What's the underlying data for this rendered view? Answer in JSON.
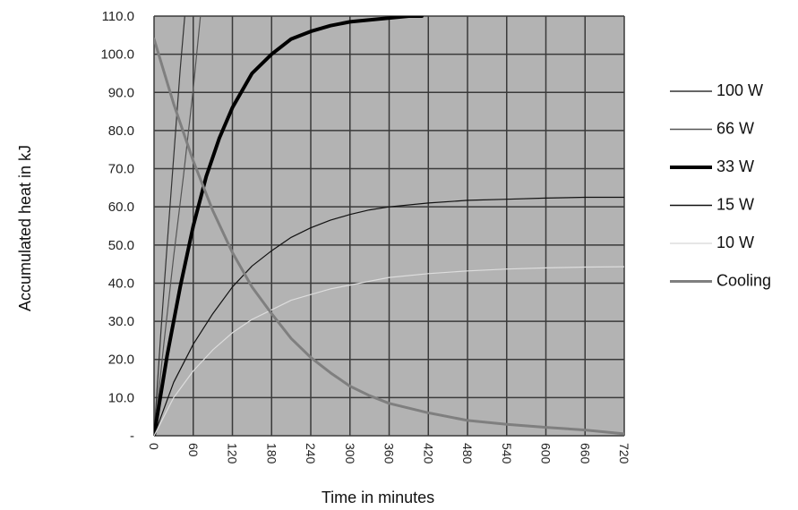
{
  "chart_data": {
    "type": "line",
    "title": "",
    "xlabel": "Time in minutes",
    "ylabel": "Accumulated heat in kJ",
    "xlim": [
      0,
      720
    ],
    "ylim": [
      0,
      110
    ],
    "x_ticks": [
      "0",
      "60",
      "120",
      "180",
      "240",
      "300",
      "360",
      "420",
      "480",
      "540",
      "600",
      "660",
      "720"
    ],
    "y_ticks": [
      "-",
      "10.0",
      "20.0",
      "30.0",
      "40.0",
      "50.0",
      "60.0",
      "70.0",
      "80.0",
      "90.0",
      "100.0",
      "110.0"
    ],
    "grid": true,
    "legend_position": "right",
    "plot_background": "#b3b3b3",
    "series": [
      {
        "name": "100 W",
        "color": "#333333",
        "width": 1.2,
        "x": [
          0,
          10,
          20,
          30,
          40,
          47
        ],
        "y": [
          0,
          26,
          50,
          73,
          96,
          110
        ]
      },
      {
        "name": "66 W",
        "color": "#555555",
        "width": 1.2,
        "x": [
          0,
          15,
          30,
          45,
          60,
          71
        ],
        "y": [
          0,
          24,
          47,
          68,
          91,
          110
        ]
      },
      {
        "name": "33 W",
        "color": "#000000",
        "width": 4,
        "x": [
          0,
          20,
          40,
          60,
          80,
          100,
          120,
          150,
          180,
          210,
          240,
          270,
          300,
          330,
          360,
          390,
          410
        ],
        "y": [
          0,
          21,
          39,
          55,
          68,
          78,
          86,
          95,
          100,
          104,
          106,
          107.5,
          108.5,
          109,
          109.5,
          110,
          110
        ]
      },
      {
        "name": "15 W",
        "color": "#111111",
        "width": 1.2,
        "x": [
          0,
          30,
          60,
          90,
          120,
          150,
          180,
          210,
          240,
          270,
          300,
          330,
          360,
          420,
          480,
          540,
          600,
          660,
          720
        ],
        "y": [
          0,
          14,
          24,
          32,
          39,
          44.5,
          48.5,
          52,
          54.5,
          56.5,
          58,
          59.2,
          60,
          61,
          61.7,
          62,
          62.3,
          62.5,
          62.5
        ]
      },
      {
        "name": "10 W",
        "color": "#dddddd",
        "width": 1.2,
        "x": [
          0,
          30,
          60,
          90,
          120,
          150,
          180,
          210,
          240,
          270,
          300,
          330,
          360,
          420,
          480,
          540,
          600,
          660,
          720
        ],
        "y": [
          0,
          10,
          17,
          22.5,
          27,
          30.5,
          33,
          35.5,
          37,
          38.5,
          39.5,
          40.5,
          41.5,
          42.5,
          43.2,
          43.7,
          44,
          44.2,
          44.3
        ]
      },
      {
        "name": "Cooling",
        "color": "#7f7f7f",
        "width": 3,
        "x": [
          0,
          30,
          60,
          90,
          120,
          150,
          180,
          210,
          240,
          270,
          300,
          330,
          360,
          420,
          480,
          540,
          600,
          660,
          720
        ],
        "y": [
          104,
          87,
          72,
          59,
          48,
          39,
          32,
          25.5,
          20.5,
          16.5,
          13,
          10.5,
          8.5,
          6,
          4,
          3,
          2.2,
          1.5,
          0.5
        ]
      }
    ]
  }
}
